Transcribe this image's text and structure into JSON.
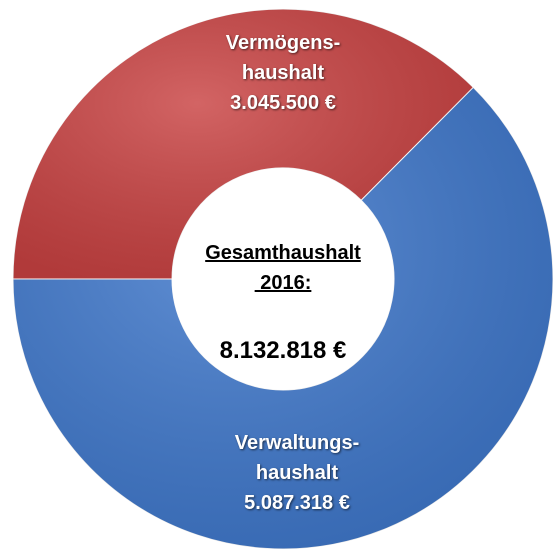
{
  "chart_data": {
    "type": "donut",
    "categories": [
      "Vermögens-\nhaushalt",
      "Verwaltungs-\nhaushalt"
    ],
    "values": [
      3045500,
      5087318
    ],
    "value_labels": [
      "3.045.500 €",
      "5.087.318 €"
    ],
    "colors": [
      "#c94242",
      "#3f78cc"
    ],
    "start_angle": 270,
    "center_title": "Gesamthaushalt\n 2016:",
    "center_value": "8.132.818 €"
  }
}
